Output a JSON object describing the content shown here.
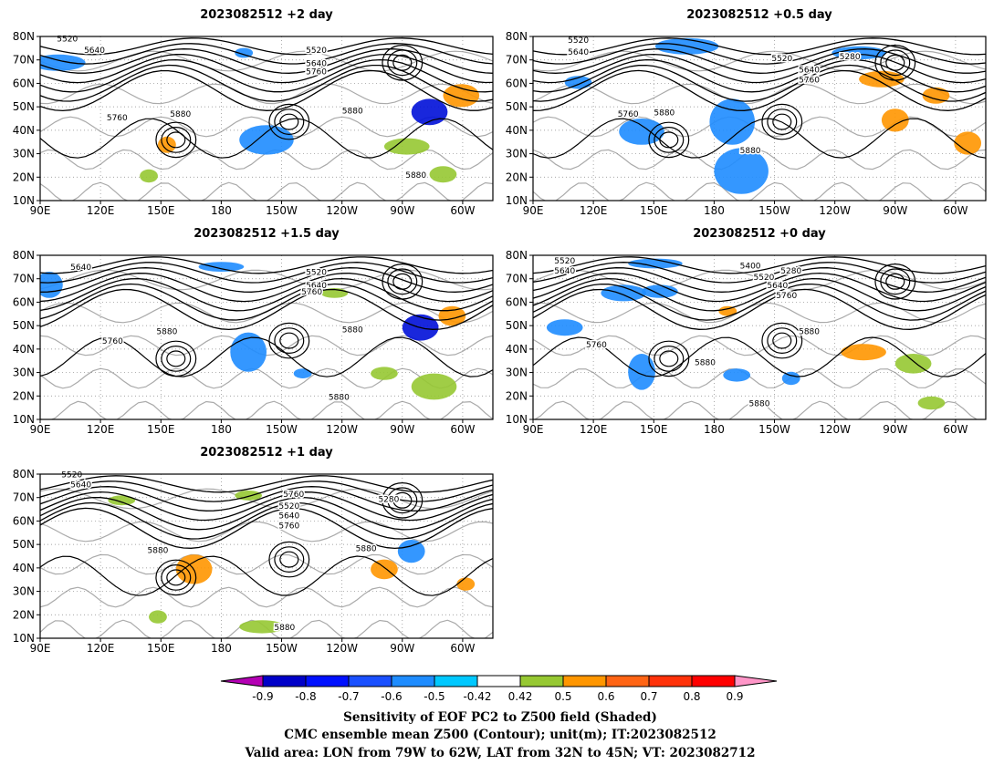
{
  "panels": [
    {
      "title": "2023082512 +2 day",
      "contour_labels": [
        "5520",
        "5640",
        "5760",
        "5880",
        "5520",
        "5640",
        "5760",
        "5880",
        "5880"
      ],
      "shade_color": "#1a2cff"
    },
    {
      "title": "2023082512 +0.5 day",
      "contour_labels": [
        "5520",
        "5640",
        "5760",
        "5880",
        "5280",
        "5520",
        "5640",
        "5760",
        "5880"
      ],
      "shade_color": "#0a8cff"
    },
    {
      "title": "2023082512 +1.5 day",
      "contour_labels": [
        "5640",
        "5760",
        "5880",
        "5520",
        "5640",
        "5760",
        "5880",
        "5880"
      ],
      "shade_color": "#1a2cff"
    },
    {
      "title": "2023082512 +0 day",
      "contour_labels": [
        "5520",
        "5640",
        "5400",
        "5280",
        "5520",
        "5640",
        "5760",
        "5760",
        "5880",
        "5880",
        "5880"
      ],
      "shade_color": "#0a8cff"
    },
    {
      "title": "2023082512 +1 day",
      "contour_labels": [
        "5520",
        "5640",
        "5760",
        "5880",
        "5520",
        "5640",
        "5760",
        "5280",
        "5880",
        "5880"
      ],
      "shade_color": "#8fc24a"
    }
  ],
  "lat_labels": [
    "80N",
    "70N",
    "60N",
    "50N",
    "40N",
    "30N",
    "20N",
    "10N"
  ],
  "lon_labels": [
    "90E",
    "120E",
    "150E",
    "180",
    "150W",
    "120W",
    "90W",
    "60W"
  ],
  "colorbar": {
    "colors": [
      "#b400b4",
      "#0000c8",
      "#0010ff",
      "#1a50ff",
      "#1e8cff",
      "#00c8ff",
      "#ffffff",
      "#96c832",
      "#ff9600",
      "#ff6414",
      "#ff320a",
      "#ff0000",
      "#ff96c8"
    ],
    "ticks": [
      "-0.9",
      "-0.8",
      "-0.7",
      "-0.6",
      "-0.5",
      "-0.42",
      "0.42",
      "0.5",
      "0.6",
      "0.7",
      "0.8",
      "0.9"
    ]
  },
  "footer": {
    "line1": "Sensitivity of EOF PC2 to Z500 field (Shaded)",
    "line2": "CMC ensemble mean Z500 (Contour); unit(m); IT:2023082512",
    "line3": "Valid area: LON from 79W to 62W, LAT from 32N to 45N; VT: 2023082712"
  }
}
